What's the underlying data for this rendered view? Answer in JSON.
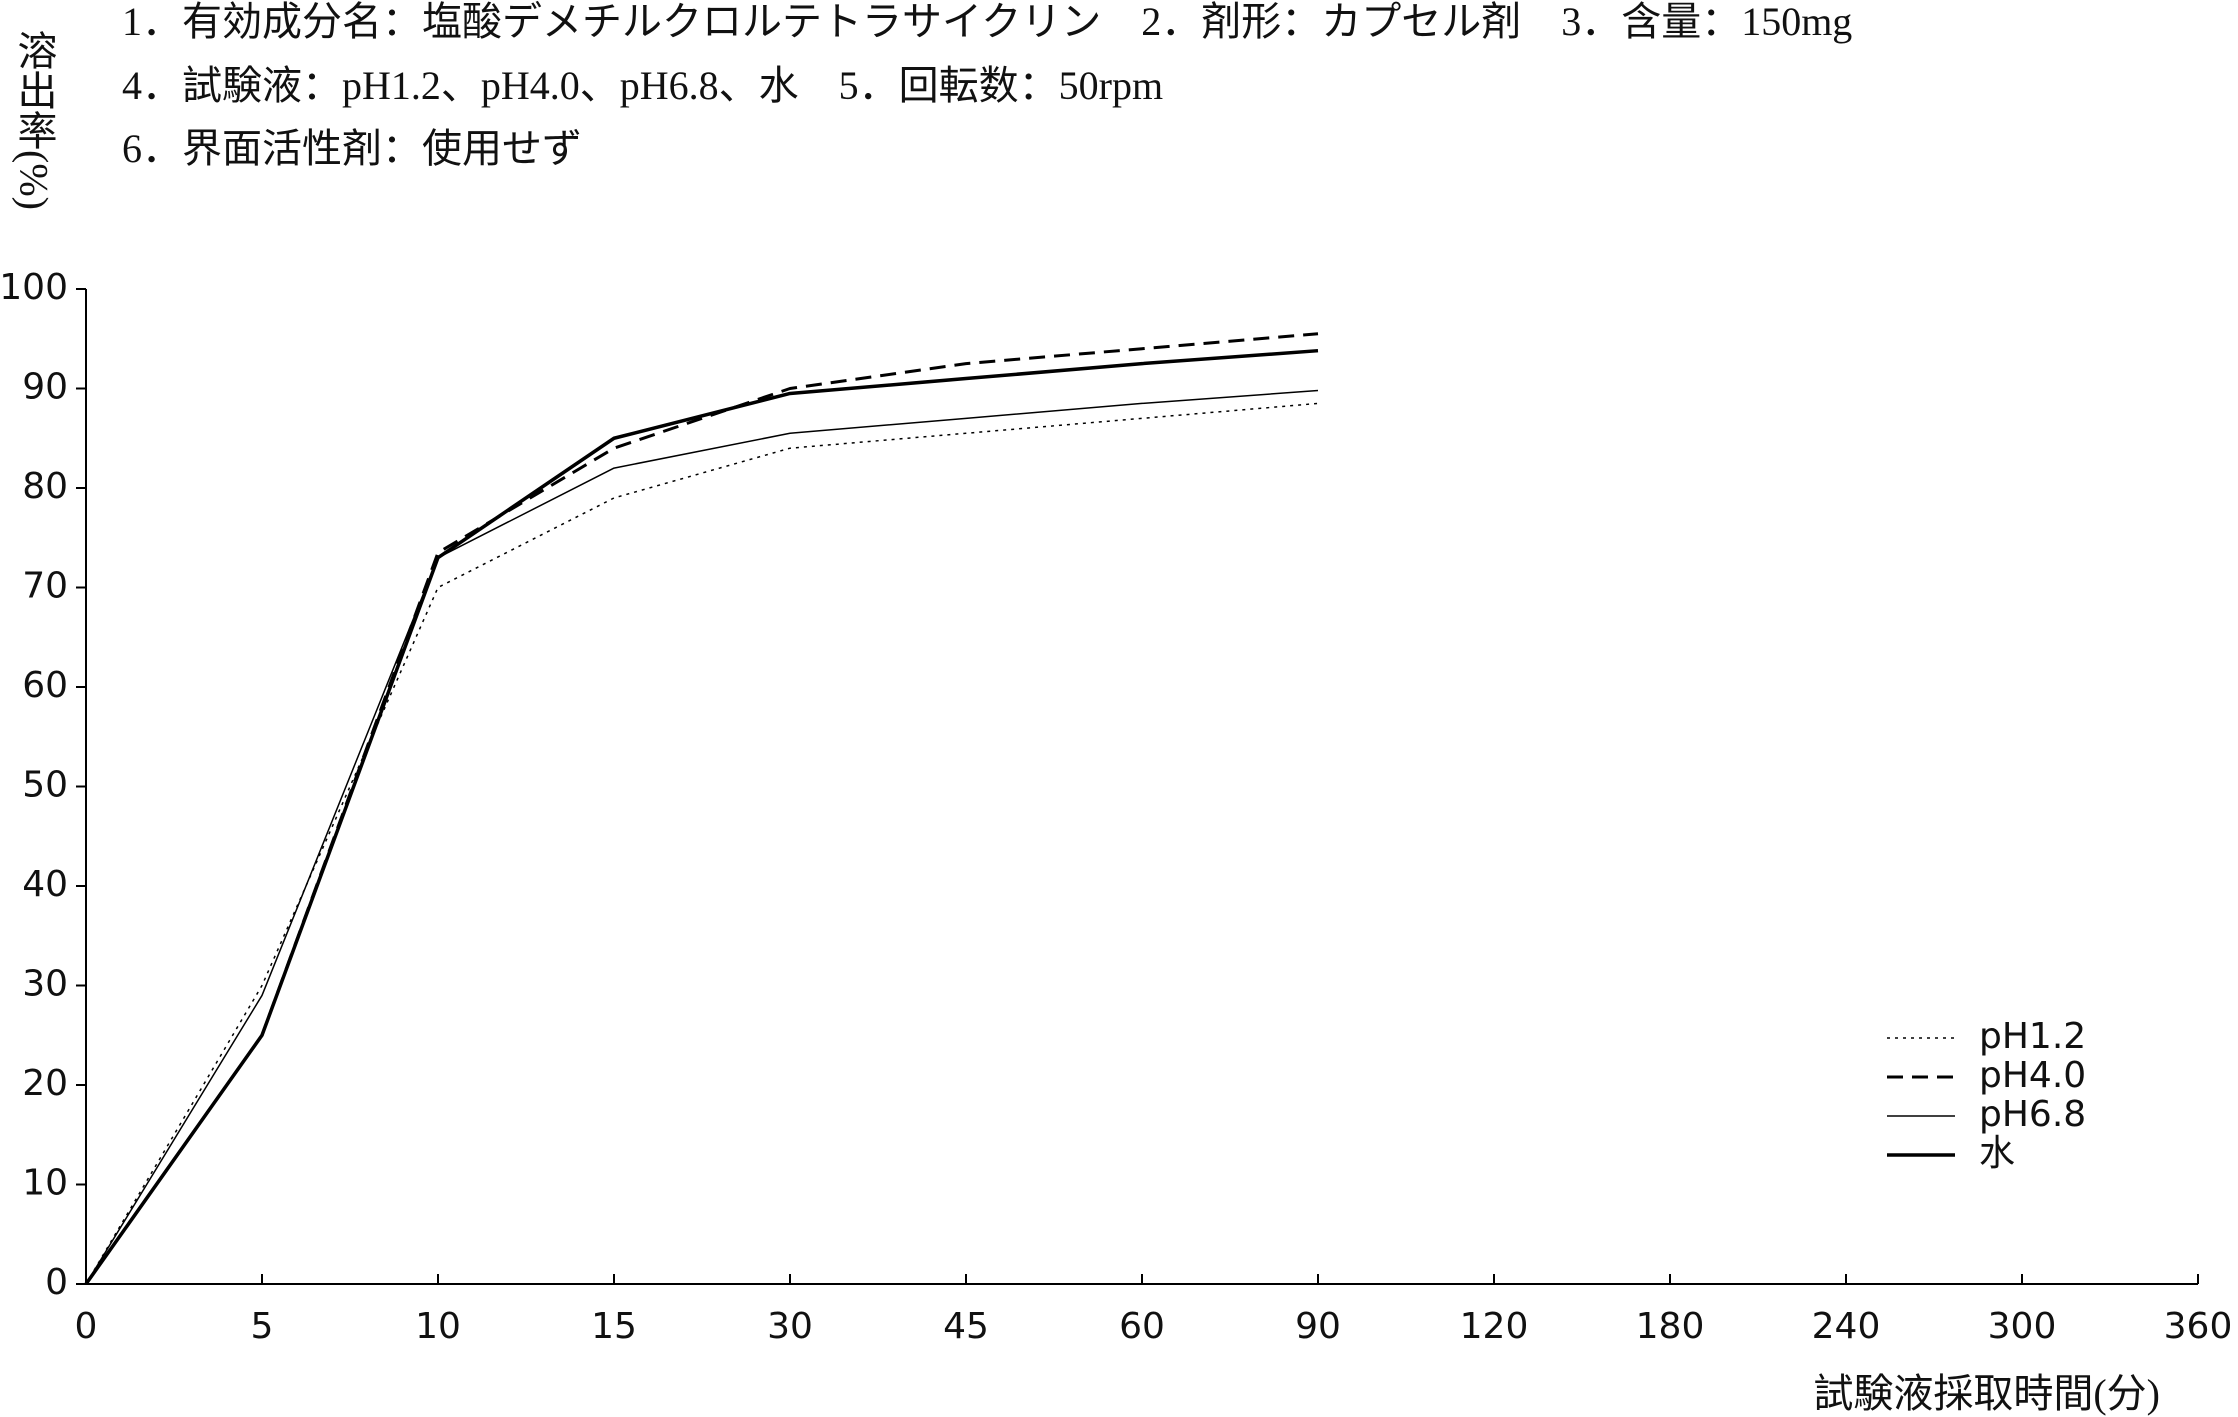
{
  "chart_data": {
    "type": "line",
    "header_lines": [
      "1．有効成分名：塩酸デメチルクロルテトラサイクリン　2．剤形：カプセル剤　3．含量：150mg",
      "4．試験液：pH1.2、pH4.0、pH6.8、水　5．回転数：50rpm",
      "6．界面活性剤：使用せず"
    ],
    "y_label": "溶出率(%)",
    "x_label": "試験液採取時間(分)",
    "categories": [
      "0",
      "5",
      "10",
      "15",
      "30",
      "45",
      "60",
      "90",
      "120",
      "180",
      "240",
      "300",
      "360"
    ],
    "series": [
      {
        "name": "pH1.2",
        "color": "#000000",
        "style": "dotted",
        "width": 1.5,
        "values": [
          0,
          30,
          70,
          79,
          84,
          85.5,
          87,
          88.5,
          null,
          null,
          null,
          null,
          null
        ]
      },
      {
        "name": "pH4.0",
        "color": "#000000",
        "style": "dashed",
        "width": 3,
        "values": [
          0,
          25,
          73.5,
          84,
          90,
          92.5,
          94,
          95.5,
          null,
          null,
          null,
          null,
          null
        ]
      },
      {
        "name": "pH6.8",
        "color": "#000000",
        "style": "solid",
        "width": 1.5,
        "values": [
          0,
          29,
          73,
          82,
          85.5,
          87,
          88.5,
          89.8,
          null,
          null,
          null,
          null,
          null
        ]
      },
      {
        "name": "水",
        "color": "#000000",
        "style": "solid",
        "width": 3.5,
        "values": [
          0,
          25,
          73,
          85,
          89.5,
          91,
          92.5,
          93.8,
          null,
          null,
          null,
          null,
          null
        ]
      }
    ],
    "ylim": [
      0,
      100
    ],
    "yticks": [
      0,
      10,
      20,
      30,
      40,
      50,
      60,
      70,
      80,
      90,
      100
    ],
    "grid": false,
    "legend": "lower right"
  }
}
